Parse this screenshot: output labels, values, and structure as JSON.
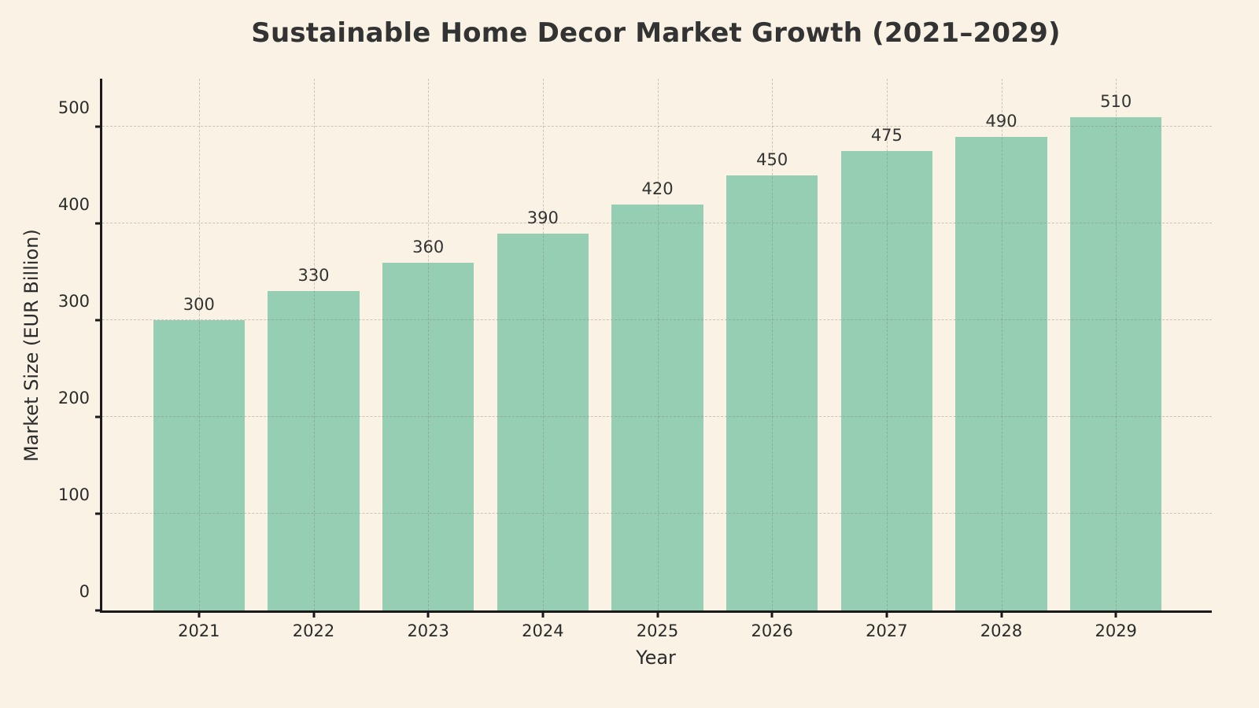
{
  "chart_data": {
    "type": "bar",
    "title": "Sustainable Home Decor Market Growth (2021–2029)",
    "xlabel": "Year",
    "ylabel": "Market Size (EUR Billion)",
    "categories": [
      "2021",
      "2022",
      "2023",
      "2024",
      "2025",
      "2026",
      "2027",
      "2028",
      "2029"
    ],
    "values": [
      300,
      330,
      360,
      390,
      420,
      450,
      475,
      490,
      510
    ],
    "value_labels": [
      "300",
      "330",
      "360",
      "390",
      "420",
      "450",
      "475",
      "490",
      "510"
    ],
    "ylim": [
      0,
      550
    ],
    "yticks": [
      0,
      100,
      200,
      300,
      400,
      500
    ],
    "grid": "dashed, horizontal and vertical, drawn over bars",
    "legend_position": "none",
    "colors": {
      "bar": "#96ceb4",
      "background": "#faf2e4",
      "grid": "rgba(125,120,110,0.38)",
      "axis": "#1a1a1a",
      "text": "#2b2b2b",
      "title": "#333333"
    }
  }
}
